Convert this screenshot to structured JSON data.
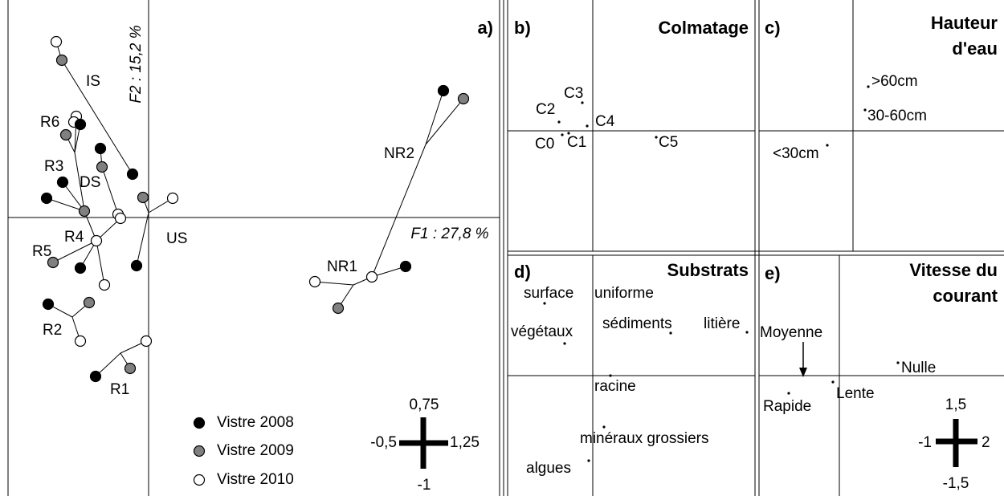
{
  "panel_a": {
    "label": "a)",
    "axis_x": "F1 : 27,8 %",
    "axis_y": "F2 : 15,2 %",
    "point_labels": [
      "IS",
      "R6",
      "R3",
      "DS",
      "R4",
      "R5",
      "US",
      "R2",
      "R1",
      "NR2",
      "NR1"
    ],
    "legend": [
      "Vistre 2008",
      "Vistre 2009",
      "Vistre 2010"
    ],
    "scale": {
      "top": "0,75",
      "left": "-0,5",
      "right": "1,25",
      "bottom": "-1"
    }
  },
  "panel_b": {
    "label": "b)",
    "title": "Colmatage",
    "points": [
      "C3",
      "C2",
      "C4",
      "C0",
      "C1",
      "C5"
    ]
  },
  "panel_c": {
    "label": "c)",
    "title": [
      "Hauteur",
      "d'eau"
    ],
    "points": [
      ">60cm",
      "30-60cm",
      "<30cm"
    ]
  },
  "panel_d": {
    "label": "d)",
    "title": "Substrats",
    "points": [
      "surface",
      "uniforme",
      "végétaux",
      "sédiments",
      "litière",
      "racine",
      "minéraux grossiers",
      "algues"
    ]
  },
  "panel_e": {
    "label": "e)",
    "title": [
      "Vitesse du",
      "courant"
    ],
    "points": [
      "Moyenne",
      "Nulle",
      "Rapide",
      "Lente"
    ],
    "scale": {
      "top": "1,5",
      "left": "-1",
      "right": "2",
      "bottom": "-1,5"
    }
  }
}
